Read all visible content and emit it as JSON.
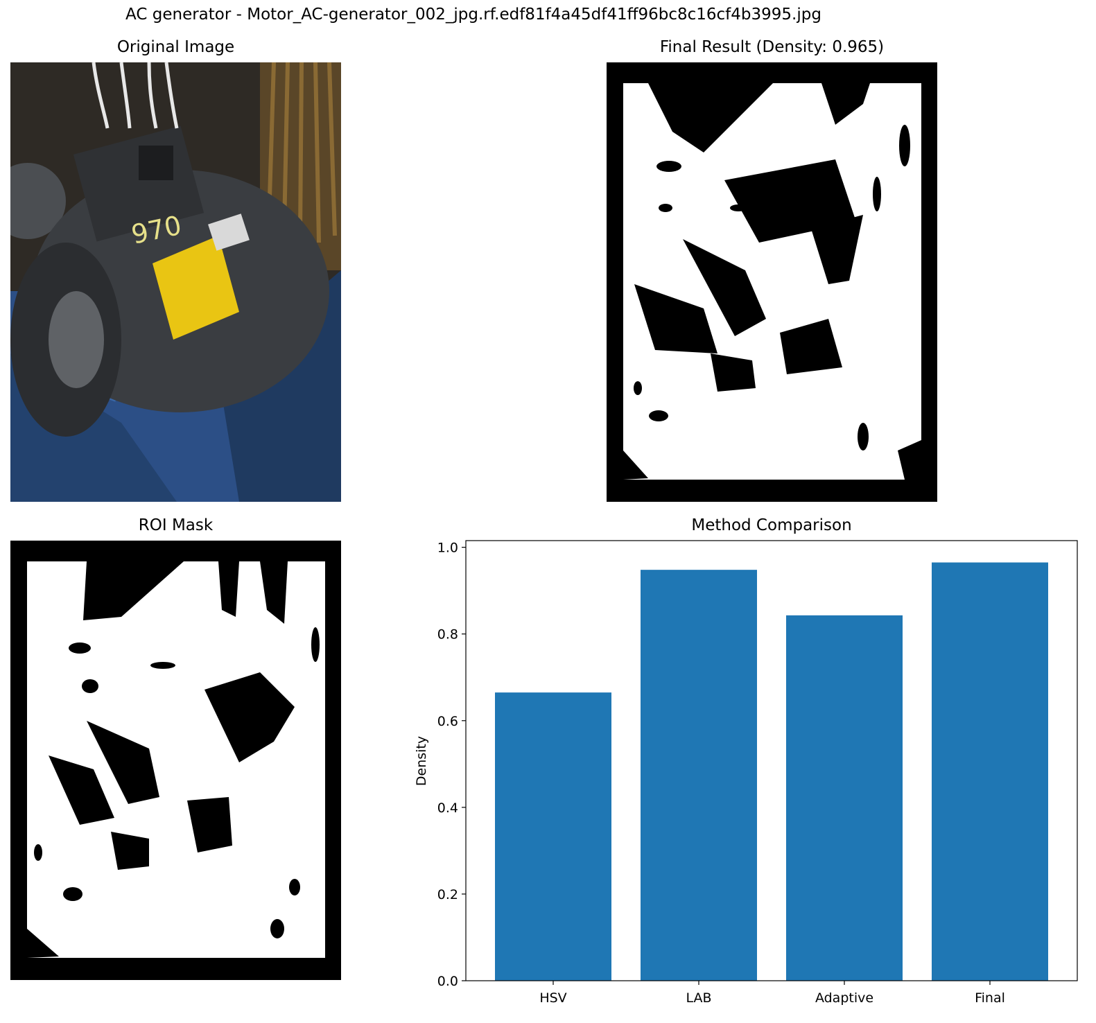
{
  "figure": {
    "title": "AC generator - Motor_AC-generator_002_jpg.rf.edf81f4a45df41ff96bc8c16cf4b3995.jpg"
  },
  "panels": {
    "original": {
      "title": "Original Image"
    },
    "final": {
      "title": "Final Result (Density: 0.965)"
    },
    "roi": {
      "title": "ROI Mask"
    }
  },
  "chart_data": {
    "type": "bar",
    "title": "Method Comparison",
    "categories": [
      "HSV",
      "LAB",
      "Adaptive",
      "Final"
    ],
    "values": [
      0.665,
      0.948,
      0.843,
      0.965
    ],
    "xlabel": "",
    "ylabel": "Density",
    "ylim": [
      0,
      1.0
    ],
    "yticks": [
      "0.0",
      "0.2",
      "0.4",
      "0.6",
      "0.8",
      "1.0"
    ],
    "bar_color": "#1f77b4",
    "grid": false
  }
}
